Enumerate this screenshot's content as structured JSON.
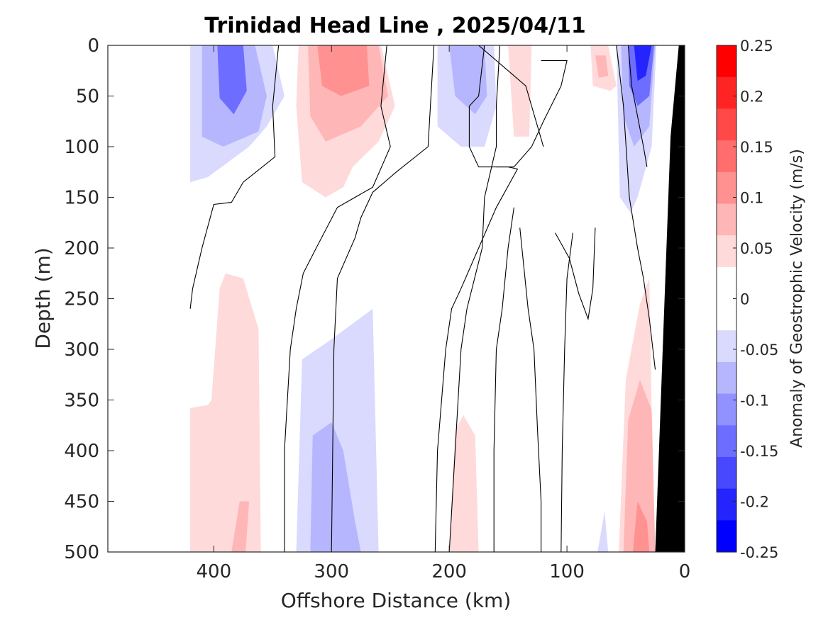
{
  "chart_data": {
    "type": "heatmap",
    "title": "Trinidad Head Line , 2025/04/11",
    "xlabel": "Offshore Distance (km)",
    "ylabel": "Depth (m)",
    "colorbar_label": "Anomaly of Geostrophic Velocity (m/s)",
    "xlim": [
      490,
      0
    ],
    "ylim": [
      0,
      500
    ],
    "y_reversed": true,
    "x_reversed": true,
    "xticks": [
      400,
      300,
      200,
      100,
      0
    ],
    "yticks": [
      0,
      50,
      100,
      150,
      200,
      250,
      300,
      350,
      400,
      450,
      500
    ],
    "clim": [
      -0.25,
      0.25
    ],
    "cbar_ticks": [
      0.25,
      0.2,
      0.15,
      0.1,
      0.05,
      0,
      -0.05,
      -0.1,
      -0.15,
      -0.2,
      -0.25
    ],
    "cbar_colors": [
      "#ff0000",
      "#ff2424",
      "#ff4848",
      "#ff6d6d",
      "#ff9191",
      "#ffb6b6",
      "#ffdada",
      "#ffffff",
      "#ffffff",
      "#dadaff",
      "#b6b6ff",
      "#9191ff",
      "#6d6dff",
      "#4848ff",
      "#2424ff",
      "#0000ff"
    ],
    "bathymetry_color": "#000000",
    "filled_regions": [
      {
        "level": -0.05,
        "points": [
          [
            420,
            0
          ],
          [
            350,
            0
          ],
          [
            340,
            50
          ],
          [
            355,
            80
          ],
          [
            370,
            100
          ],
          [
            405,
            130
          ],
          [
            420,
            135
          ]
        ]
      },
      {
        "level": -0.1,
        "points": [
          [
            410,
            0
          ],
          [
            365,
            0
          ],
          [
            355,
            50
          ],
          [
            362,
            85
          ],
          [
            392,
            100
          ],
          [
            410,
            90
          ]
        ]
      },
      {
        "level": -0.15,
        "points": [
          [
            397,
            0
          ],
          [
            375,
            0
          ],
          [
            372,
            45
          ],
          [
            383,
            68
          ],
          [
            395,
            52
          ]
        ]
      },
      {
        "level": 0.05,
        "points": [
          [
            328,
            0
          ],
          [
            258,
            0
          ],
          [
            246,
            60
          ],
          [
            260,
            95
          ],
          [
            282,
            120
          ],
          [
            290,
            140
          ],
          [
            305,
            150
          ],
          [
            325,
            135
          ],
          [
            330,
            60
          ]
        ]
      },
      {
        "level": 0.1,
        "points": [
          [
            320,
            0
          ],
          [
            260,
            0
          ],
          [
            252,
            50
          ],
          [
            275,
            80
          ],
          [
            305,
            95
          ],
          [
            318,
            70
          ]
        ]
      },
      {
        "level": 0.15,
        "points": [
          [
            312,
            0
          ],
          [
            270,
            0
          ],
          [
            268,
            40
          ],
          [
            292,
            50
          ],
          [
            308,
            40
          ]
        ]
      },
      {
        "level": -0.05,
        "points": [
          [
            210,
            0
          ],
          [
            162,
            0
          ],
          [
            160,
            60
          ],
          [
            170,
            100
          ],
          [
            190,
            100
          ],
          [
            210,
            80
          ]
        ]
      },
      {
        "level": -0.1,
        "points": [
          [
            200,
            0
          ],
          [
            170,
            0
          ],
          [
            168,
            50
          ],
          [
            178,
            68
          ],
          [
            195,
            50
          ]
        ]
      },
      {
        "level": 0.05,
        "points": [
          [
            150,
            0
          ],
          [
            130,
            0
          ],
          [
            132,
            90
          ],
          [
            145,
            90
          ]
        ]
      },
      {
        "level": 0.05,
        "points": [
          [
            80,
            0
          ],
          [
            65,
            0
          ],
          [
            58,
            40
          ],
          [
            63,
            45
          ],
          [
            78,
            40
          ]
        ]
      },
      {
        "level": 0.1,
        "points": [
          [
            76,
            10
          ],
          [
            67,
            10
          ],
          [
            65,
            30
          ],
          [
            73,
            32
          ]
        ]
      },
      {
        "level": -0.05,
        "points": [
          [
            58,
            0
          ],
          [
            24,
            0
          ],
          [
            28,
            100
          ],
          [
            40,
            150
          ],
          [
            46,
            165
          ],
          [
            55,
            150
          ]
        ]
      },
      {
        "level": -0.1,
        "points": [
          [
            54,
            0
          ],
          [
            25,
            0
          ],
          [
            30,
            80
          ],
          [
            43,
            100
          ],
          [
            52,
            70
          ]
        ]
      },
      {
        "level": -0.15,
        "points": [
          [
            48,
            0
          ],
          [
            26,
            0
          ],
          [
            30,
            50
          ],
          [
            40,
            60
          ],
          [
            47,
            40
          ]
        ]
      },
      {
        "level": -0.2,
        "points": [
          [
            43,
            0
          ],
          [
            28,
            0
          ],
          [
            33,
            30
          ],
          [
            40,
            35
          ]
        ]
      },
      {
        "level": 0.05,
        "points": [
          [
            420,
            500
          ],
          [
            420,
            358
          ],
          [
            405,
            355
          ],
          [
            402,
            350
          ],
          [
            395,
            240
          ],
          [
            390,
            225
          ],
          [
            375,
            230
          ],
          [
            362,
            280
          ],
          [
            360,
            500
          ]
        ]
      },
      {
        "level": 0.1,
        "points": [
          [
            385,
            500
          ],
          [
            378,
            450
          ],
          [
            370,
            450
          ],
          [
            373,
            500
          ]
        ]
      },
      {
        "level": -0.05,
        "points": [
          [
            330,
            500
          ],
          [
            325,
            310
          ],
          [
            300,
            290
          ],
          [
            265,
            260
          ],
          [
            260,
            500
          ]
        ]
      },
      {
        "level": -0.1,
        "points": [
          [
            318,
            500
          ],
          [
            316,
            385
          ],
          [
            300,
            372
          ],
          [
            290,
            400
          ],
          [
            280,
            470
          ],
          [
            275,
            500
          ]
        ]
      },
      {
        "level": 0.05,
        "points": [
          [
            200,
            500
          ],
          [
            195,
            380
          ],
          [
            188,
            365
          ],
          [
            178,
            385
          ],
          [
            175,
            500
          ]
        ]
      },
      {
        "level": -0.05,
        "points": [
          [
            74,
            500
          ],
          [
            68,
            460
          ],
          [
            65,
            500
          ]
        ]
      },
      {
        "level": 0.05,
        "points": [
          [
            56,
            500
          ],
          [
            50,
            330
          ],
          [
            38,
            255
          ],
          [
            30,
            230
          ],
          [
            26,
            500
          ]
        ]
      },
      {
        "level": 0.1,
        "points": [
          [
            52,
            500
          ],
          [
            48,
            370
          ],
          [
            38,
            330
          ],
          [
            28,
            360
          ],
          [
            25,
            500
          ]
        ]
      },
      {
        "level": 0.15,
        "points": [
          [
            44,
            500
          ],
          [
            40,
            450
          ],
          [
            32,
            470
          ],
          [
            30,
            500
          ]
        ]
      }
    ],
    "zero_contours": [
      [
        [
          345,
          0
        ],
        [
          350,
          60
        ],
        [
          348,
          110
        ],
        [
          375,
          135
        ],
        [
          385,
          155
        ],
        [
          400,
          157
        ],
        [
          410,
          200
        ],
        [
          418,
          240
        ],
        [
          420,
          260
        ]
      ],
      [
        [
          253,
          0
        ],
        [
          258,
          60
        ],
        [
          250,
          100
        ],
        [
          265,
          140
        ],
        [
          295,
          160
        ],
        [
          313,
          200
        ],
        [
          324,
          225
        ],
        [
          330,
          260
        ],
        [
          335,
          300
        ],
        [
          340,
          400
        ],
        [
          340,
          500
        ]
      ],
      [
        [
          213,
          0
        ],
        [
          216,
          60
        ],
        [
          218,
          100
        ],
        [
          245,
          125
        ],
        [
          265,
          145
        ],
        [
          275,
          170
        ],
        [
          280,
          190
        ],
        [
          295,
          230
        ],
        [
          298,
          300
        ],
        [
          300,
          500
        ]
      ],
      [
        [
          170,
          0
        ],
        [
          175,
          50
        ],
        [
          183,
          60
        ],
        [
          183,
          100
        ],
        [
          175,
          120
        ],
        [
          150,
          120
        ],
        [
          142,
          122
        ],
        [
          160,
          160
        ],
        [
          175,
          200
        ],
        [
          190,
          240
        ],
        [
          198,
          260
        ],
        [
          203,
          300
        ],
        [
          210,
          400
        ],
        [
          212,
          500
        ]
      ],
      [
        [
          157,
          0
        ],
        [
          160,
          60
        ],
        [
          160,
          100
        ],
        [
          170,
          150
        ],
        [
          172,
          200
        ],
        [
          185,
          260
        ],
        [
          190,
          300
        ],
        [
          200,
          500
        ]
      ],
      [
        [
          122,
          15
        ],
        [
          100,
          15
        ],
        [
          105,
          40
        ],
        [
          120,
          75
        ],
        [
          130,
          100
        ],
        [
          145,
          120
        ],
        [
          160,
          120
        ]
      ],
      [
        [
          175,
          0
        ],
        [
          155,
          20
        ],
        [
          135,
          40
        ],
        [
          125,
          80
        ],
        [
          120,
          100
        ]
      ],
      [
        [
          145,
          160
        ],
        [
          150,
          200
        ],
        [
          155,
          260
        ],
        [
          160,
          300
        ],
        [
          162,
          400
        ],
        [
          162,
          500
        ]
      ],
      [
        [
          140,
          180
        ],
        [
          133,
          260
        ],
        [
          128,
          300
        ],
        [
          125,
          380
        ],
        [
          122,
          450
        ],
        [
          122,
          500
        ]
      ],
      [
        [
          110,
          185
        ],
        [
          98,
          210
        ],
        [
          90,
          245
        ],
        [
          82,
          270
        ],
        [
          78,
          240
        ],
        [
          76,
          180
        ]
      ],
      [
        [
          95,
          185
        ],
        [
          100,
          230
        ],
        [
          102,
          300
        ],
        [
          104,
          400
        ],
        [
          105,
          500
        ]
      ],
      [
        [
          58,
          0
        ],
        [
          52,
          60
        ],
        [
          47,
          150
        ],
        [
          40,
          200
        ],
        [
          35,
          230
        ],
        [
          30,
          270
        ],
        [
          25,
          320
        ]
      ],
      [
        [
          48,
          0
        ],
        [
          45,
          40
        ],
        [
          35,
          100
        ],
        [
          32,
          120
        ]
      ]
    ],
    "bathymetry": [
      [
        0,
        0
      ],
      [
        5,
        0
      ],
      [
        12,
        90
      ],
      [
        25,
        500
      ],
      [
        0,
        500
      ]
    ]
  }
}
